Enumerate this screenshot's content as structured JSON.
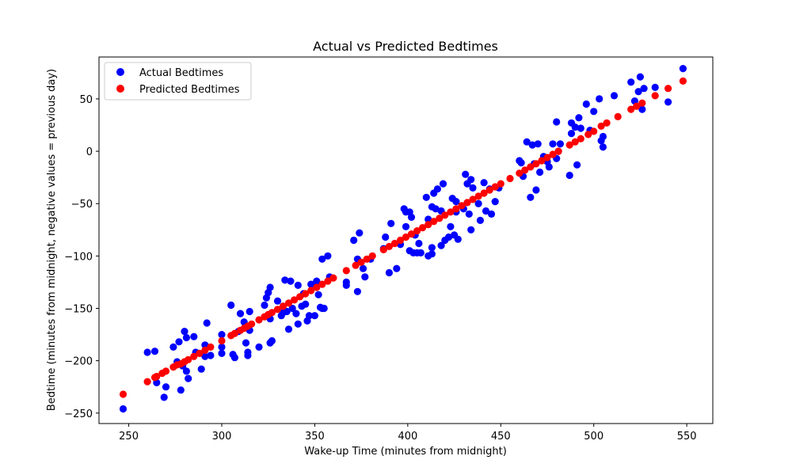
{
  "chart_data": {
    "type": "scatter",
    "title": "Actual vs Predicted Bedtimes",
    "xlabel": "Wake-up Time (minutes from midnight)",
    "ylabel": "Bedtime (minutes from midnight, negative values = previous day)",
    "xlim": [
      234,
      564
    ],
    "ylim": [
      -260,
      90
    ],
    "xticks": [
      250,
      300,
      350,
      400,
      450,
      500,
      550
    ],
    "yticks": [
      -250,
      -200,
      -150,
      -100,
      -50,
      0,
      50
    ],
    "grid": false,
    "legend_position": "upper-left",
    "series": [
      {
        "name": "Actual Bedtimes",
        "color": "#0000ff",
        "points": [
          [
            247,
            -246
          ],
          [
            260,
            -192
          ],
          [
            264,
            -191
          ],
          [
            265,
            -221
          ],
          [
            269,
            -235
          ],
          [
            270,
            -225
          ],
          [
            274,
            -187
          ],
          [
            276,
            -201
          ],
          [
            277,
            -182
          ],
          [
            278,
            -228
          ],
          [
            279,
            -205
          ],
          [
            280,
            -172
          ],
          [
            281,
            -178
          ],
          [
            281,
            -210
          ],
          [
            282,
            -217
          ],
          [
            285,
            -177
          ],
          [
            286,
            -192
          ],
          [
            289,
            -208
          ],
          [
            291,
            -185
          ],
          [
            291,
            -196
          ],
          [
            292,
            -164
          ],
          [
            294,
            -195
          ],
          [
            300,
            -175
          ],
          [
            300,
            -187
          ],
          [
            300,
            -193
          ],
          [
            305,
            -147
          ],
          [
            306,
            -194
          ],
          [
            307,
            -197
          ],
          [
            309,
            -172
          ],
          [
            310,
            -155
          ],
          [
            312,
            -163
          ],
          [
            313,
            -183
          ],
          [
            314,
            -192
          ],
          [
            314,
            -195
          ],
          [
            315,
            -171
          ],
          [
            315,
            -153
          ],
          [
            320,
            -187
          ],
          [
            323,
            -147
          ],
          [
            324,
            -140
          ],
          [
            325,
            -135
          ],
          [
            326,
            -130
          ],
          [
            326,
            -160
          ],
          [
            326,
            -183
          ],
          [
            327,
            -181
          ],
          [
            330,
            -143
          ],
          [
            332,
            -157
          ],
          [
            333,
            -154
          ],
          [
            333,
            -148
          ],
          [
            334,
            -123
          ],
          [
            335,
            -153
          ],
          [
            336,
            -170
          ],
          [
            337,
            -124
          ],
          [
            338,
            -150
          ],
          [
            340,
            -155
          ],
          [
            341,
            -128
          ],
          [
            341,
            -165
          ],
          [
            343,
            -148
          ],
          [
            344,
            -136
          ],
          [
            345,
            -146
          ],
          [
            346,
            -162
          ],
          [
            347,
            -157
          ],
          [
            348,
            -127
          ],
          [
            350,
            -157
          ],
          [
            351,
            -124
          ],
          [
            352,
            -137
          ],
          [
            353,
            -149
          ],
          [
            354,
            -150
          ],
          [
            354,
            -103
          ],
          [
            355,
            -150
          ],
          [
            357,
            -100
          ],
          [
            358,
            -120
          ],
          [
            367,
            -125
          ],
          [
            367,
            -128
          ],
          [
            371,
            -85
          ],
          [
            373,
            -134
          ],
          [
            373,
            -103
          ],
          [
            374,
            -78
          ],
          [
            376,
            -112
          ],
          [
            377,
            -120
          ],
          [
            380,
            -103
          ],
          [
            387,
            -93
          ],
          [
            388,
            -82
          ],
          [
            390,
            -116
          ],
          [
            391,
            -69
          ],
          [
            394,
            -112
          ],
          [
            396,
            -89
          ],
          [
            398,
            -55
          ],
          [
            399,
            -58
          ],
          [
            399,
            -72
          ],
          [
            401,
            -58
          ],
          [
            401,
            -95
          ],
          [
            402,
            -63
          ],
          [
            403,
            -97
          ],
          [
            404,
            -80
          ],
          [
            405,
            -97
          ],
          [
            406,
            -88
          ],
          [
            407,
            -97
          ],
          [
            410,
            -44
          ],
          [
            411,
            -100
          ],
          [
            411,
            -65
          ],
          [
            413,
            -98
          ],
          [
            413,
            -92
          ],
          [
            413,
            -53
          ],
          [
            414,
            -40
          ],
          [
            415,
            -55
          ],
          [
            416,
            -36
          ],
          [
            418,
            -57
          ],
          [
            418,
            -90
          ],
          [
            419,
            -31
          ],
          [
            420,
            -85
          ],
          [
            422,
            -82
          ],
          [
            423,
            -72
          ],
          [
            424,
            -45
          ],
          [
            425,
            -80
          ],
          [
            426,
            -58
          ],
          [
            426,
            -48
          ],
          [
            427,
            -84
          ],
          [
            430,
            -55
          ],
          [
            431,
            -22
          ],
          [
            432,
            -31
          ],
          [
            433,
            -60
          ],
          [
            434,
            -75
          ],
          [
            434,
            -27
          ],
          [
            435,
            -35
          ],
          [
            438,
            -50
          ],
          [
            439,
            -66
          ],
          [
            441,
            -30
          ],
          [
            442,
            -57
          ],
          [
            444,
            -36
          ],
          [
            445,
            -60
          ],
          [
            447,
            -48
          ],
          [
            449,
            -35
          ],
          [
            460,
            -9
          ],
          [
            461,
            -11
          ],
          [
            462,
            -24
          ],
          [
            464,
            9
          ],
          [
            466,
            -44
          ],
          [
            467,
            6
          ],
          [
            468,
            -12
          ],
          [
            469,
            -37
          ],
          [
            470,
            7
          ],
          [
            471,
            -20
          ],
          [
            473,
            -5
          ],
          [
            475,
            -10
          ],
          [
            476,
            -15
          ],
          [
            478,
            7
          ],
          [
            480,
            28
          ],
          [
            480,
            -7
          ],
          [
            481,
            0
          ],
          [
            482,
            7
          ],
          [
            487,
            -23
          ],
          [
            488,
            17
          ],
          [
            488,
            27
          ],
          [
            490,
            23
          ],
          [
            491,
            -13
          ],
          [
            492,
            32
          ],
          [
            493,
            22
          ],
          [
            496,
            45
          ],
          [
            498,
            20
          ],
          [
            500,
            38
          ],
          [
            503,
            50
          ],
          [
            504,
            10
          ],
          [
            505,
            4
          ],
          [
            505,
            14
          ],
          [
            511,
            53
          ],
          [
            520,
            66
          ],
          [
            522,
            48
          ],
          [
            524,
            57
          ],
          [
            525,
            71
          ],
          [
            526,
            40
          ],
          [
            527,
            60
          ],
          [
            533,
            61
          ],
          [
            540,
            47
          ],
          [
            548,
            79
          ]
        ]
      },
      {
        "name": "Predicted Bedtimes",
        "color": "#ff0000",
        "points": [
          [
            247,
            -232
          ],
          [
            260,
            -220
          ],
          [
            264,
            -216
          ],
          [
            265,
            -215
          ],
          [
            268,
            -212
          ],
          [
            270,
            -210
          ],
          [
            274,
            -206
          ],
          [
            276,
            -204
          ],
          [
            278,
            -203
          ],
          [
            280,
            -201
          ],
          [
            282,
            -199
          ],
          [
            285,
            -196
          ],
          [
            288,
            -193
          ],
          [
            291,
            -190
          ],
          [
            294,
            -187
          ],
          [
            300,
            -181
          ],
          [
            305,
            -176
          ],
          [
            307,
            -174
          ],
          [
            310,
            -171
          ],
          [
            312,
            -169
          ],
          [
            314,
            -167
          ],
          [
            316,
            -165
          ],
          [
            320,
            -161
          ],
          [
            323,
            -158
          ],
          [
            325,
            -156
          ],
          [
            327,
            -154
          ],
          [
            330,
            -151
          ],
          [
            333,
            -148
          ],
          [
            336,
            -145
          ],
          [
            339,
            -142
          ],
          [
            342,
            -139
          ],
          [
            345,
            -136
          ],
          [
            348,
            -133
          ],
          [
            351,
            -130
          ],
          [
            354,
            -127
          ],
          [
            357,
            -124
          ],
          [
            360,
            -121
          ],
          [
            367,
            -114
          ],
          [
            372,
            -109
          ],
          [
            375,
            -106
          ],
          [
            378,
            -103
          ],
          [
            381,
            -100
          ],
          [
            387,
            -94
          ],
          [
            390,
            -91
          ],
          [
            393,
            -88
          ],
          [
            396,
            -85
          ],
          [
            399,
            -82
          ],
          [
            402,
            -79
          ],
          [
            405,
            -76
          ],
          [
            408,
            -73
          ],
          [
            411,
            -70
          ],
          [
            414,
            -67
          ],
          [
            417,
            -64
          ],
          [
            420,
            -61
          ],
          [
            423,
            -58
          ],
          [
            426,
            -55
          ],
          [
            429,
            -52
          ],
          [
            432,
            -49
          ],
          [
            435,
            -46
          ],
          [
            438,
            -43
          ],
          [
            441,
            -40
          ],
          [
            444,
            -37
          ],
          [
            447,
            -34
          ],
          [
            450,
            -31
          ],
          [
            455,
            -26
          ],
          [
            460,
            -21
          ],
          [
            463,
            -18
          ],
          [
            466,
            -15
          ],
          [
            469,
            -12
          ],
          [
            472,
            -9
          ],
          [
            475,
            -6
          ],
          [
            478,
            -3
          ],
          [
            481,
            0
          ],
          [
            487,
            6
          ],
          [
            490,
            9
          ],
          [
            493,
            12
          ],
          [
            497,
            16
          ],
          [
            500,
            19
          ],
          [
            504,
            24
          ],
          [
            507,
            27
          ],
          [
            513,
            33
          ],
          [
            520,
            40
          ],
          [
            523,
            43
          ],
          [
            526,
            46
          ],
          [
            533,
            53
          ],
          [
            540,
            60
          ],
          [
            548,
            67
          ]
        ]
      }
    ]
  }
}
